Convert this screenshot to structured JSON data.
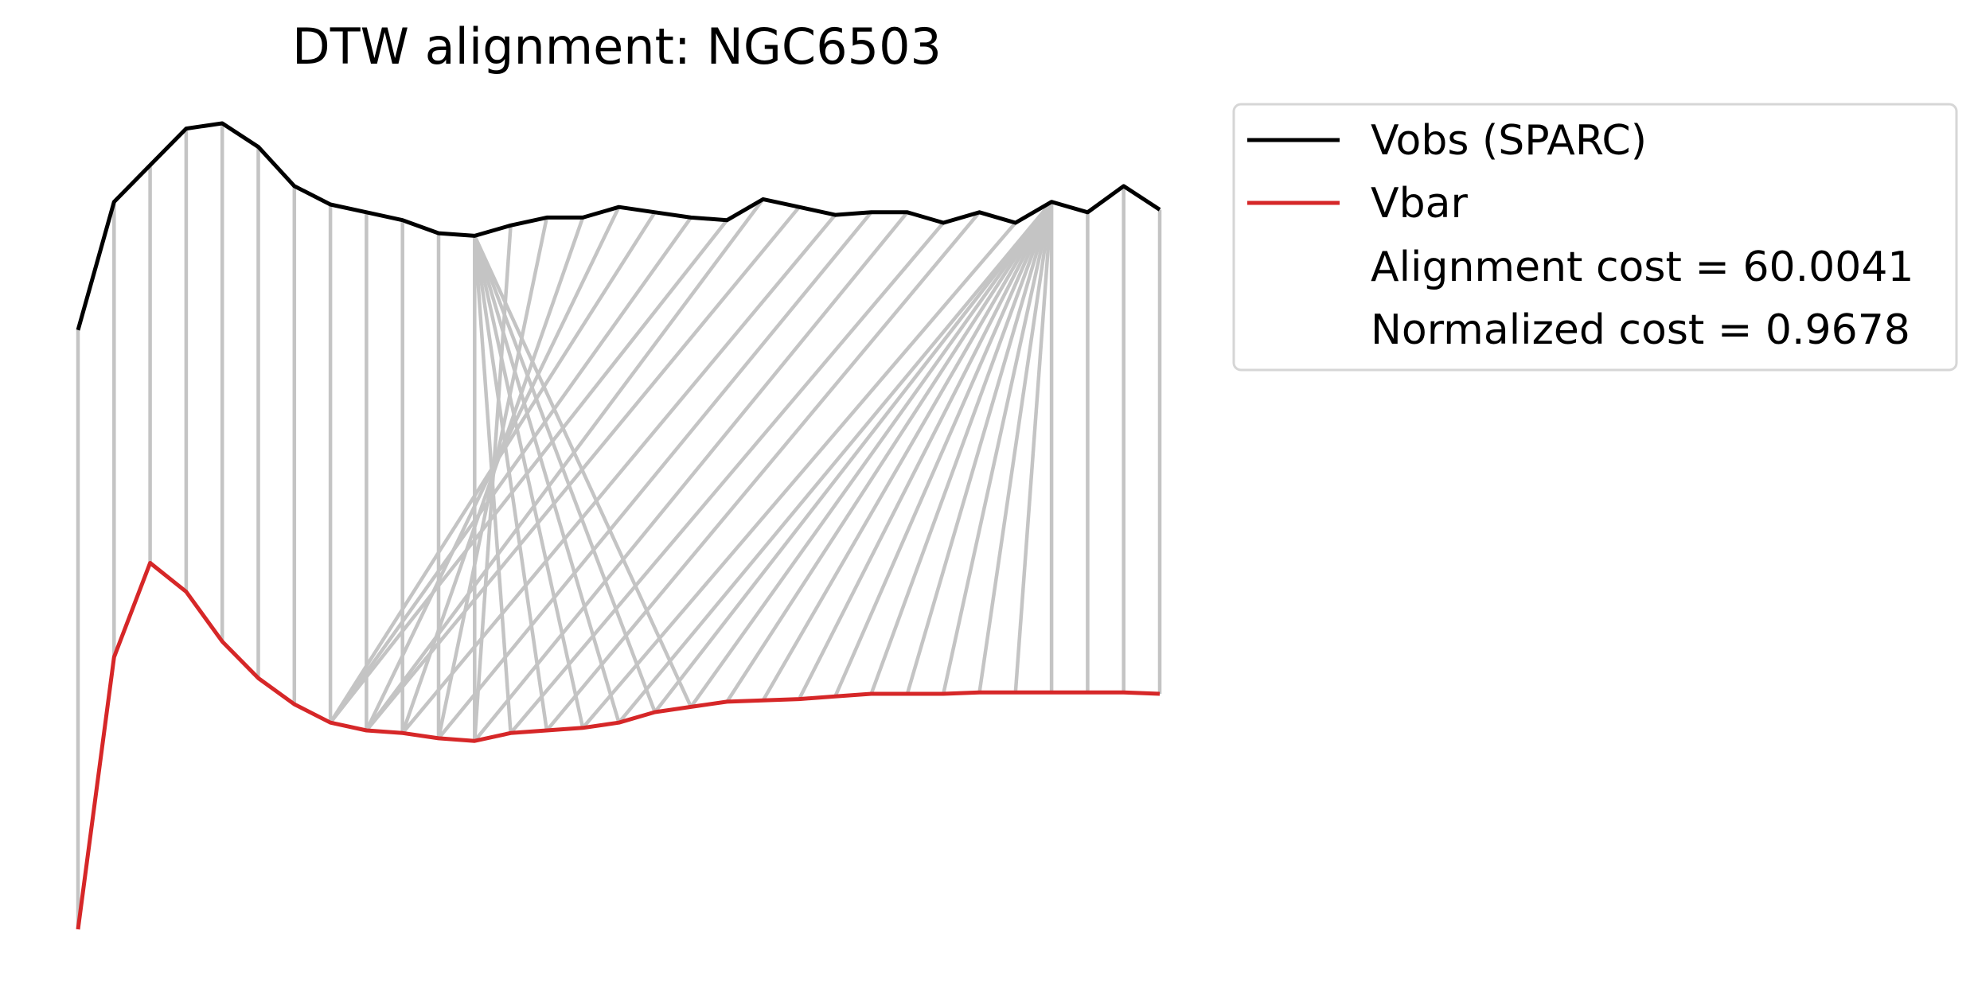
{
  "chart_data": {
    "type": "line",
    "title": "DTW alignment: NGC6503",
    "axes_visible": false,
    "grid": false,
    "legend_position": "outside-top-right",
    "colors": {
      "vobs": "#000000",
      "vbar": "#d62728",
      "connector": "#c4c4c4",
      "legend_border": "#d6d6d6"
    },
    "x": [
      0,
      1,
      2,
      3,
      4,
      5,
      6,
      7,
      8,
      9,
      10,
      11,
      12,
      13,
      14,
      15,
      16,
      17,
      18,
      19,
      20,
      21,
      22,
      23,
      24,
      25,
      26,
      27,
      28,
      29,
      30
    ],
    "series": [
      {
        "name": "Vobs (SPARC)",
        "key": "vobs",
        "values": [
          0.76,
          1.25,
          1.39,
          1.53,
          1.55,
          1.46,
          1.31,
          1.24,
          1.21,
          1.18,
          1.13,
          1.12,
          1.16,
          1.19,
          1.19,
          1.23,
          1.21,
          1.19,
          1.18,
          1.26,
          1.23,
          1.2,
          1.21,
          1.21,
          1.17,
          1.21,
          1.17,
          1.25,
          1.21,
          1.31,
          1.22
        ]
      },
      {
        "name": "Vbar",
        "key": "vbar",
        "values": [
          -1.53,
          -0.49,
          -0.13,
          -0.24,
          -0.43,
          -0.57,
          -0.67,
          -0.74,
          -0.77,
          -0.78,
          -0.8,
          -0.81,
          -0.78,
          -0.77,
          -0.76,
          -0.74,
          -0.7,
          -0.68,
          -0.66,
          -0.655,
          -0.65,
          -0.64,
          -0.63,
          -0.63,
          -0.63,
          -0.625,
          -0.625,
          -0.625,
          -0.625,
          -0.625,
          -0.63
        ]
      }
    ],
    "alignment_pairs": [
      [
        0,
        0
      ],
      [
        1,
        1
      ],
      [
        2,
        2
      ],
      [
        3,
        3
      ],
      [
        4,
        4
      ],
      [
        5,
        5
      ],
      [
        6,
        6
      ],
      [
        7,
        7
      ],
      [
        8,
        8
      ],
      [
        9,
        9
      ],
      [
        10,
        10
      ],
      [
        11,
        11
      ],
      [
        11,
        12
      ],
      [
        11,
        13
      ],
      [
        11,
        14
      ],
      [
        11,
        15
      ],
      [
        11,
        16
      ],
      [
        11,
        17
      ],
      [
        12,
        11
      ],
      [
        13,
        10
      ],
      [
        14,
        9
      ],
      [
        15,
        8
      ],
      [
        16,
        7
      ],
      [
        17,
        7
      ],
      [
        18,
        7
      ],
      [
        19,
        8
      ],
      [
        20,
        8
      ],
      [
        21,
        9
      ],
      [
        22,
        10
      ],
      [
        23,
        11
      ],
      [
        24,
        12
      ],
      [
        25,
        13
      ],
      [
        26,
        14
      ],
      [
        27,
        15
      ],
      [
        27,
        16
      ],
      [
        27,
        17
      ],
      [
        27,
        18
      ],
      [
        27,
        19
      ],
      [
        27,
        20
      ],
      [
        27,
        21
      ],
      [
        27,
        22
      ],
      [
        27,
        23
      ],
      [
        27,
        24
      ],
      [
        27,
        25
      ],
      [
        27,
        26
      ],
      [
        27,
        27
      ],
      [
        28,
        28
      ],
      [
        29,
        29
      ],
      [
        30,
        30
      ]
    ],
    "legend": [
      {
        "key": "vobs",
        "label": "Vobs (SPARC)",
        "has_line": true
      },
      {
        "key": "vbar",
        "label": "Vbar",
        "has_line": true
      },
      {
        "key": "cost",
        "label": "Alignment cost = 60.0041",
        "has_line": false
      },
      {
        "key": "norm",
        "label": "Normalized cost = 0.9678",
        "has_line": false
      }
    ]
  }
}
